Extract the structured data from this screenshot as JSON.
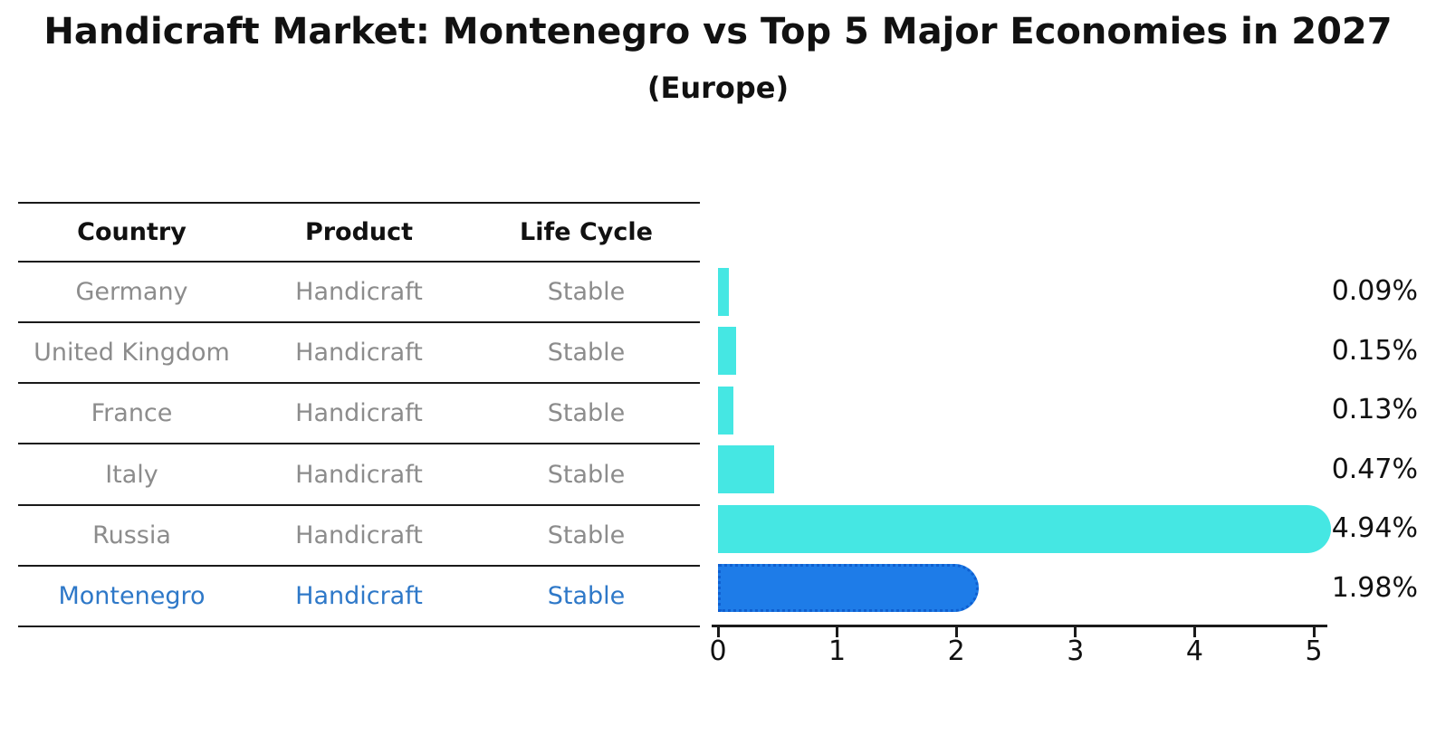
{
  "title": "Handicraft Market: Montenegro vs Top 5 Major Economies in 2027",
  "subtitle": "(Europe)",
  "table": {
    "headers": [
      "Country",
      "Product",
      "Life Cycle"
    ],
    "rows": [
      {
        "country": "Germany",
        "product": "Handicraft",
        "life_cycle": "Stable",
        "highlight": false
      },
      {
        "country": "United Kingdom",
        "product": "Handicraft",
        "life_cycle": "Stable",
        "highlight": false
      },
      {
        "country": "France",
        "product": "Handicraft",
        "life_cycle": "Stable",
        "highlight": false
      },
      {
        "country": "Italy",
        "product": "Handicraft",
        "life_cycle": "Stable",
        "highlight": false
      },
      {
        "country": "Russia",
        "product": "Handicraft",
        "life_cycle": "Stable",
        "highlight": false
      },
      {
        "country": "Montenegro",
        "product": "Handicraft",
        "life_cycle": "Stable",
        "highlight": true
      }
    ]
  },
  "chart_data": {
    "type": "bar",
    "orientation": "horizontal",
    "title": "Handicraft Market: Montenegro vs Top 5 Major Economies in 2027",
    "subtitle": "(Europe)",
    "categories": [
      "Germany",
      "United Kingdom",
      "France",
      "Italy",
      "Russia",
      "Montenegro"
    ],
    "values": [
      0.09,
      0.15,
      0.13,
      0.47,
      4.94,
      1.98
    ],
    "value_labels": [
      "0.09%",
      "0.15%",
      "0.13%",
      "0.47%",
      "4.94%",
      "1.98%"
    ],
    "xlabel": "",
    "ylabel": "",
    "x_ticks": [
      "0",
      "1",
      "2",
      "3",
      "4",
      "5"
    ],
    "xlim": [
      0,
      5.2
    ],
    "grid": false,
    "legend": false,
    "bar_colors": {
      "default": "#45E7E3",
      "highlight": "#1E7CE8"
    }
  },
  "colors": {
    "cyan_bar": "#45E7E3",
    "blue_bar": "#1E7CE8",
    "blue_bar_dot_border": "#0F5FD0",
    "highlight_text": "#2E78C8",
    "muted_text": "#8C8C8C",
    "heading_text": "#111111",
    "axis": "#1a1a1a"
  }
}
